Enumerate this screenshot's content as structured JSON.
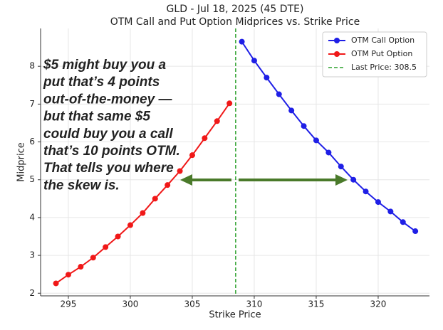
{
  "chart_data": {
    "type": "line",
    "title": "GLD - Jul 18, 2025 (45 DTE)",
    "subtitle": "OTM Call and Put Option Midprices vs. Strike Price",
    "x_label": "Strike Price",
    "y_label": "Midprice",
    "xlim": [
      292.76,
      324.14
    ],
    "ylim": [
      1.93,
      9.0
    ],
    "xticks": [
      295,
      300,
      305,
      310,
      315,
      320
    ],
    "yticks": [
      2,
      3,
      4,
      5,
      6,
      7,
      8
    ],
    "grid": true,
    "legend": "upper right",
    "series": [
      {
        "name": "OTM Call Option",
        "color": "#1f1fe6",
        "x": [
          309,
          310,
          311,
          312,
          313,
          314,
          315,
          316,
          317,
          318,
          319,
          320,
          321,
          322,
          323
        ],
        "values": [
          8.65,
          8.15,
          7.7,
          7.26,
          6.83,
          6.42,
          6.04,
          5.72,
          5.35,
          5.0,
          4.69,
          4.41,
          4.16,
          3.88,
          3.64
        ]
      },
      {
        "name": "OTM Put Option",
        "color": "#f01818",
        "x": [
          294,
          295,
          296,
          297,
          298,
          299,
          300,
          301,
          302,
          303,
          304,
          305,
          306,
          307,
          308
        ],
        "values": [
          2.26,
          2.49,
          2.7,
          2.94,
          3.22,
          3.5,
          3.8,
          4.12,
          4.5,
          4.86,
          5.23,
          5.65,
          6.1,
          6.55,
          7.02
        ]
      }
    ],
    "vline": {
      "name": "Last Price: 308.5",
      "x": 308.5,
      "color": "#2ca02c"
    },
    "annotation": {
      "color": "#4a7a2a",
      "lines": [
        "$5 might buy you a",
        "put that’s 4 points",
        "out-of-the-money —",
        "but that same $5",
        "could buy you a call",
        "that’s 10 points OTM.",
        "That tells you where",
        "the skew is."
      ]
    }
  }
}
